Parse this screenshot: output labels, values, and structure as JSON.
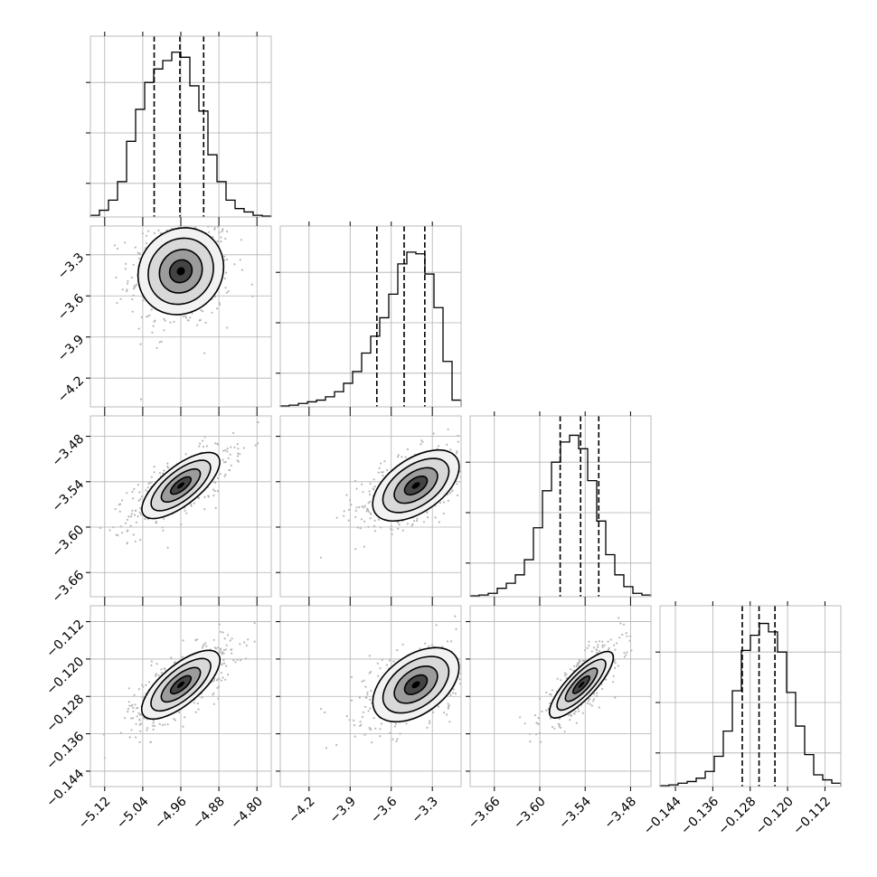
{
  "chart_data": {
    "type": "corner",
    "title": "",
    "parameters": [
      {
        "range": [
          -5.15,
          -4.77
        ],
        "ticks": [
          "−5.12",
          "−5.04",
          "−4.96",
          "−4.88",
          "−4.80"
        ],
        "tick_values": [
          -5.12,
          -5.04,
          -4.96,
          -4.88,
          -4.8
        ],
        "mean": -4.96,
        "sd": 0.04,
        "quantiles": [
          -5.016,
          -4.962,
          -4.912
        ]
      },
      {
        "range": [
          -4.41,
          -3.09
        ],
        "ticks": [
          "−4.2",
          "−3.9",
          "−3.6",
          "−3.3"
        ],
        "tick_values": [
          -4.2,
          -3.9,
          -3.6,
          -3.3
        ],
        "mean": -3.42,
        "sd": 0.16,
        "quantiles": [
          -3.705,
          -3.506,
          -3.355
        ]
      },
      {
        "range": [
          -3.692,
          -3.453
        ],
        "ticks": [
          "−3.66",
          "−3.60",
          "−3.54",
          "−3.48"
        ],
        "tick_values": [
          -3.66,
          -3.6,
          -3.54,
          -3.48
        ],
        "mean": -3.545,
        "sd": 0.02,
        "quantiles": [
          -3.573,
          -3.546,
          -3.522
        ]
      },
      {
        "range": [
          -0.1473,
          -0.1086
        ],
        "ticks": [
          "−0.144",
          "−0.136",
          "−0.128",
          "−0.120",
          "−0.112"
        ],
        "tick_values": [
          -0.144,
          -0.136,
          -0.128,
          -0.12,
          -0.112
        ],
        "mean": -0.1255,
        "sd": 0.0034,
        "quantiles": [
          -0.1297,
          -0.1261,
          -0.1227
        ]
      }
    ],
    "histograms": [
      [
        0.01,
        0.04,
        0.1,
        0.21,
        0.45,
        0.64,
        0.8,
        0.88,
        0.93,
        0.98,
        0.95,
        0.78,
        0.63,
        0.37,
        0.21,
        0.1,
        0.05,
        0.03,
        0.01,
        0.005
      ],
      [
        0.005,
        0.01,
        0.02,
        0.03,
        0.04,
        0.06,
        0.09,
        0.14,
        0.21,
        0.32,
        0.42,
        0.53,
        0.67,
        0.85,
        0.92,
        0.91,
        0.79,
        0.59,
        0.27,
        0.04
      ],
      [
        0.005,
        0.01,
        0.02,
        0.05,
        0.08,
        0.13,
        0.22,
        0.41,
        0.63,
        0.8,
        0.92,
        0.96,
        0.88,
        0.69,
        0.45,
        0.25,
        0.13,
        0.06,
        0.02,
        0.01
      ],
      [
        0.005,
        0.01,
        0.02,
        0.03,
        0.05,
        0.09,
        0.18,
        0.33,
        0.57,
        0.81,
        0.9,
        0.97,
        0.92,
        0.8,
        0.56,
        0.36,
        0.19,
        0.07,
        0.04,
        0.02
      ]
    ],
    "correlations": {
      "1-0": 0.1,
      "2-0": 0.72,
      "2-1": 0.55,
      "3-0": 0.72,
      "3-1": 0.48,
      "3-2": 0.82
    },
    "grid": true
  }
}
